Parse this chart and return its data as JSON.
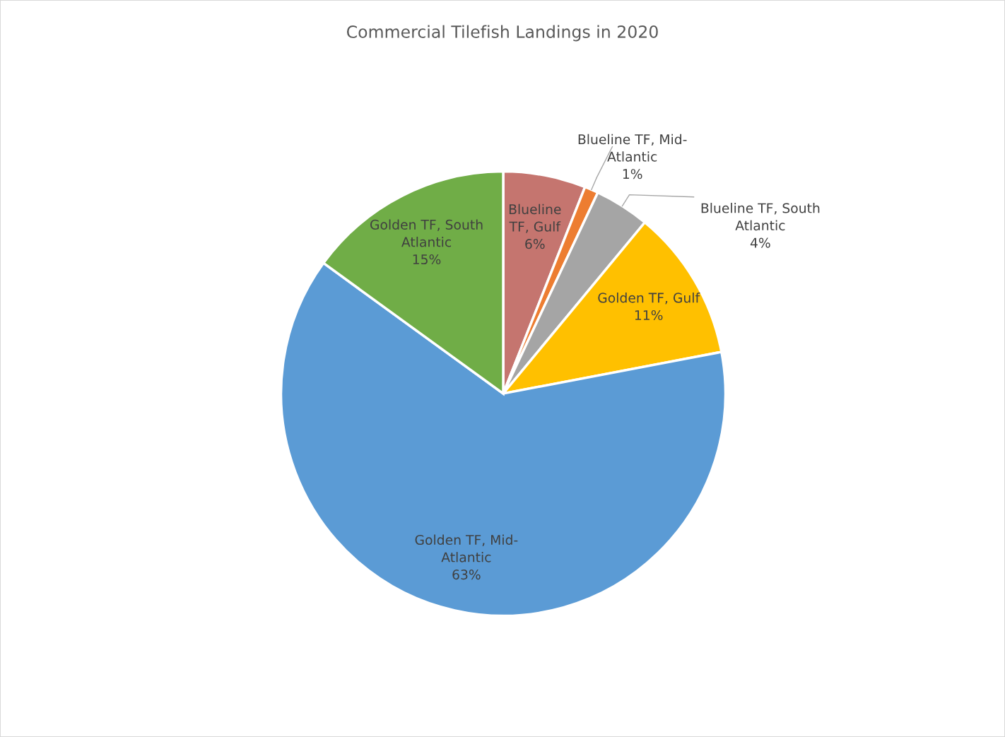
{
  "chart_data": {
    "type": "pie",
    "title": "Commercial Tilefish Landings in 2020",
    "categories": [
      "Blueline\nTF, Gulf",
      "Blueline TF, Mid-\nAtlantic",
      "Blueline TF, South\nAtlantic",
      "Golden TF, Gulf",
      "Golden TF, Mid-\nAtlantic",
      "Golden TF, South\nAtlantic"
    ],
    "values": [
      6,
      1,
      4,
      11,
      63,
      15
    ],
    "value_labels": [
      "6%",
      "1%",
      "4%",
      "11%",
      "63%",
      "15%"
    ],
    "colors": [
      "#c5756f",
      "#ed7d31",
      "#a5a5a5",
      "#ffc000",
      "#5b9bd5",
      "#70ad47"
    ],
    "legend": false
  }
}
